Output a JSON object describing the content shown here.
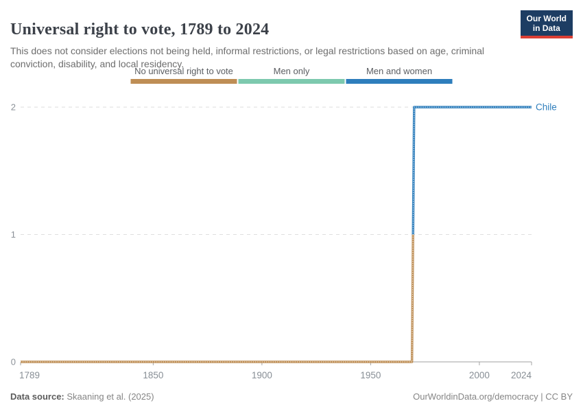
{
  "header": {
    "title": "Universal right to vote, 1789 to 2024",
    "subtitle": "This does not consider elections not being held, informal restrictions, or legal restrictions based on age, criminal conviction, disability, and local residency.",
    "logo": {
      "line1": "Our World",
      "line2": "in Data",
      "bg_color": "#1d3d63",
      "accent_color": "#dc3f34"
    }
  },
  "legend": {
    "items": [
      {
        "label": "No universal right to vote",
        "color": "#BE8E55"
      },
      {
        "label": "Men only",
        "color": "#7DC9AE"
      },
      {
        "label": "Men and women",
        "color": "#2E7EBC"
      }
    ]
  },
  "chart_data": {
    "type": "line",
    "title": "Universal right to vote, 1789 to 2024",
    "xlabel": "",
    "ylabel": "",
    "xlim": [
      1789,
      2024
    ],
    "ylim": [
      0,
      2
    ],
    "x_ticks": [
      1789,
      1850,
      1900,
      1950,
      2000,
      2024
    ],
    "y_ticks": [
      0,
      1,
      2
    ],
    "grid": "horizontal-dashed",
    "legend_position": "top-center",
    "value_categories": {
      "0": "No universal right to vote",
      "1": "Men only",
      "2": "Men and women"
    },
    "series": [
      {
        "name": "Chile",
        "label_color": "#2E7EBC",
        "steps": [
          {
            "from": 1789,
            "to": 1969,
            "value": 0,
            "category": "No universal right to vote",
            "color": "#BE8E55"
          },
          {
            "from": 1970,
            "to": 2024,
            "value": 2,
            "category": "Men and women",
            "color": "#2E7EBC"
          }
        ]
      }
    ]
  },
  "footer": {
    "source_label": "Data source:",
    "source_value": "Skaaning et al. (2025)",
    "right_text": "OurWorldinData.org/democracy | CC BY"
  }
}
